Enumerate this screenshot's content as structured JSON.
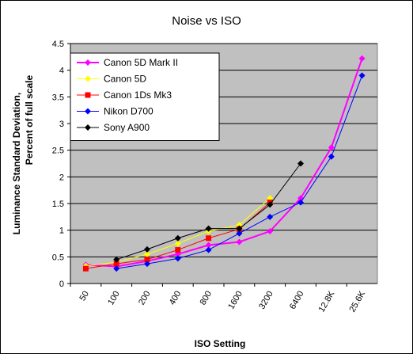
{
  "chart_data": {
    "type": "line",
    "title": "Noise vs ISO",
    "xlabel": "ISO Setting",
    "ylabel": "Luminance Standard Deviation, Percent of full scale",
    "categories": [
      "50",
      "100",
      "200",
      "400",
      "800",
      "1600",
      "3200",
      "6400",
      "12.8K",
      "25.6K"
    ],
    "ylim": [
      0,
      4.5
    ],
    "yticks": [
      0,
      0.5,
      1,
      1.5,
      2,
      2.5,
      3,
      3.5,
      4,
      4.5
    ],
    "grid": true,
    "plot_background": "#c0c0c0",
    "legend_position": "top-left",
    "series": [
      {
        "name": "Canon 5D Mark II",
        "color": "#ff00ff",
        "marker": "diamond",
        "values": [
          0.35,
          0.32,
          0.42,
          0.55,
          0.72,
          0.78,
          0.98,
          1.6,
          2.55,
          4.22
        ]
      },
      {
        "name": "Canon 5D",
        "color": "#ffff00",
        "marker": "diamond",
        "values": [
          0.33,
          0.4,
          0.55,
          0.75,
          0.98,
          1.1,
          1.6,
          null,
          null,
          null
        ]
      },
      {
        "name": "Canon 1Ds Mk3",
        "color": "#ff0000",
        "marker": "square",
        "values": [
          0.28,
          0.37,
          0.45,
          0.63,
          0.85,
          1.02,
          1.52,
          null,
          null,
          null
        ]
      },
      {
        "name": "Nikon D700",
        "color": "#0000ff",
        "marker": "diamond",
        "values": [
          null,
          0.28,
          0.37,
          0.47,
          0.63,
          0.94,
          1.25,
          1.52,
          2.38,
          3.9
        ]
      },
      {
        "name": "Sony A900",
        "color": "#000000",
        "marker": "diamond",
        "values": [
          null,
          0.45,
          0.64,
          0.85,
          1.03,
          1.03,
          1.48,
          2.25,
          null,
          null
        ]
      }
    ]
  }
}
